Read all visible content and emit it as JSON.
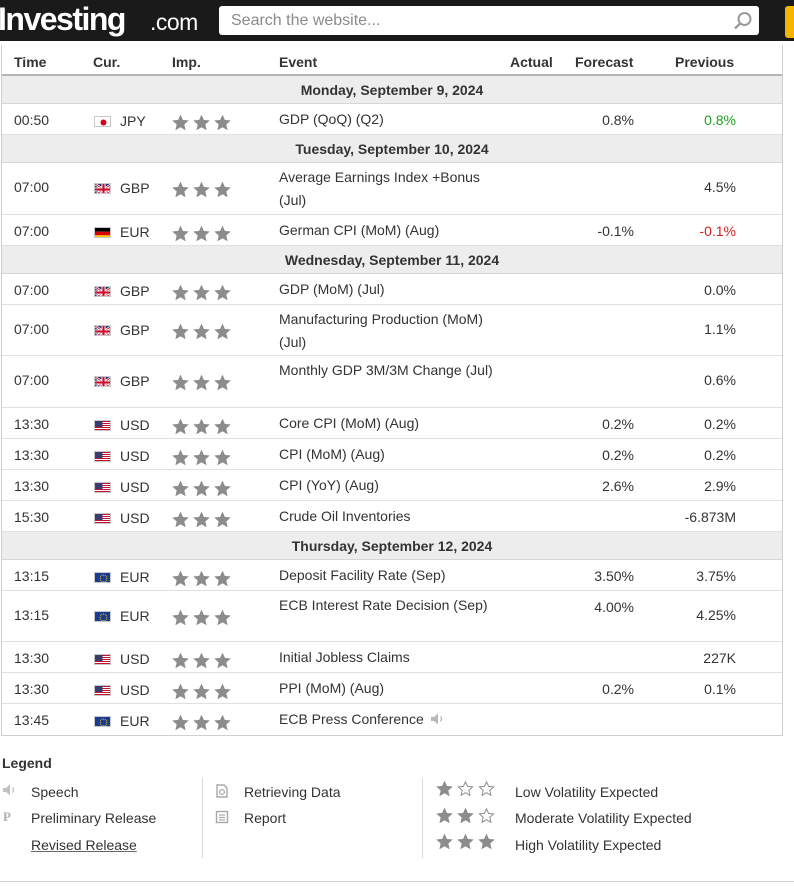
{
  "site": {
    "logo_main": "Investing",
    "logo_suffix": ".com",
    "search_placeholder": "Search the website..."
  },
  "table": {
    "headers": {
      "time": "Time",
      "cur": "Cur.",
      "imp": "Imp.",
      "event": "Event",
      "actual": "Actual",
      "forecast": "Forecast",
      "previous": "Previous"
    },
    "days": [
      {
        "label": "Monday, September 9, 2024",
        "events": [
          {
            "time": "00:50",
            "flag": "jp",
            "cur": "JPY",
            "event": "GDP (QoQ) (Q2)",
            "actual": "",
            "forecast": "0.8%",
            "previous": "0.8%",
            "previous_color": "green",
            "height": "h31"
          }
        ]
      },
      {
        "label": "Tuesday, September 10, 2024",
        "events": [
          {
            "time": "07:00",
            "flag": "gb",
            "cur": "GBP",
            "event": "Average Earnings Index +Bonus (Jul)",
            "actual": "",
            "forecast": "",
            "previous": "4.5%",
            "previous_color": "",
            "height": "h52"
          },
          {
            "time": "07:00",
            "flag": "de",
            "cur": "EUR",
            "event": "German CPI (MoM) (Aug)",
            "actual": "",
            "forecast": "-0.1%",
            "previous": "-0.1%",
            "previous_color": "red",
            "height": "h31"
          }
        ]
      },
      {
        "label": "Wednesday, September 11, 2024",
        "events": [
          {
            "time": "07:00",
            "flag": "gb",
            "cur": "GBP",
            "event": "GDP (MoM) (Jul)",
            "actual": "",
            "forecast": "",
            "previous": "0.0%",
            "previous_color": "",
            "height": "h31"
          },
          {
            "time": "07:00",
            "flag": "gb",
            "cur": "GBP",
            "event": "Manufacturing Production (MoM) (Jul)",
            "actual": "",
            "forecast": "",
            "previous": "1.1%",
            "previous_color": "",
            "height": "h51"
          },
          {
            "time": "07:00",
            "flag": "gb",
            "cur": "GBP",
            "event": "Monthly GDP 3M/3M Change (Jul)",
            "actual": "",
            "forecast": "",
            "previous": "0.6%",
            "previous_color": "",
            "height": "h52"
          },
          {
            "time": "13:30",
            "flag": "us",
            "cur": "USD",
            "event": "Core CPI (MoM) (Aug)",
            "actual": "",
            "forecast": "0.2%",
            "previous": "0.2%",
            "previous_color": "",
            "height": "h31"
          },
          {
            "time": "13:30",
            "flag": "us",
            "cur": "USD",
            "event": "CPI (MoM) (Aug)",
            "actual": "",
            "forecast": "0.2%",
            "previous": "0.2%",
            "previous_color": "",
            "height": "h31"
          },
          {
            "time": "13:30",
            "flag": "us",
            "cur": "USD",
            "event": "CPI (YoY) (Aug)",
            "actual": "",
            "forecast": "2.6%",
            "previous": "2.9%",
            "previous_color": "",
            "height": "h31"
          },
          {
            "time": "15:30",
            "flag": "us",
            "cur": "USD",
            "event": "Crude Oil Inventories",
            "actual": "",
            "forecast": "",
            "previous": "-6.873M",
            "previous_color": "",
            "height": "h31"
          }
        ]
      },
      {
        "label": "Thursday, September 12, 2024",
        "events": [
          {
            "time": "13:15",
            "flag": "eu",
            "cur": "EUR",
            "event": "Deposit Facility Rate (Sep)",
            "actual": "",
            "forecast": "3.50%",
            "previous": "3.75%",
            "previous_color": "",
            "height": "h31"
          },
          {
            "time": "13:15",
            "flag": "eu",
            "cur": "EUR",
            "event": "ECB Interest Rate Decision (Sep)",
            "actual": "",
            "forecast": "4.00%",
            "previous": "4.25%",
            "previous_color": "",
            "height": "h51"
          },
          {
            "time": "13:30",
            "flag": "us",
            "cur": "USD",
            "event": "Initial Jobless Claims",
            "actual": "",
            "forecast": "",
            "previous": "227K",
            "previous_color": "",
            "height": "h31"
          },
          {
            "time": "13:30",
            "flag": "us",
            "cur": "USD",
            "event": "PPI (MoM) (Aug)",
            "actual": "",
            "forecast": "0.2%",
            "previous": "0.1%",
            "previous_color": "",
            "height": "h31"
          },
          {
            "time": "13:45",
            "flag": "eu",
            "cur": "EUR",
            "event": "ECB Press Conference",
            "actual": "",
            "forecast": "",
            "previous": "",
            "previous_color": "",
            "height": "h31",
            "speech": true
          }
        ]
      }
    ]
  },
  "legend": {
    "title": "Legend",
    "speech": "Speech",
    "preliminary": "Preliminary Release",
    "revised": "Revised Release",
    "retrieving": "Retrieving Data",
    "report": "Report",
    "low": "Low Volatility Expected",
    "moderate": "Moderate Volatility Expected",
    "high": "High Volatility Expected"
  },
  "colors": {
    "positive": "#1aa31a",
    "negative": "#d91e1e",
    "star": "#8c8c8c"
  }
}
